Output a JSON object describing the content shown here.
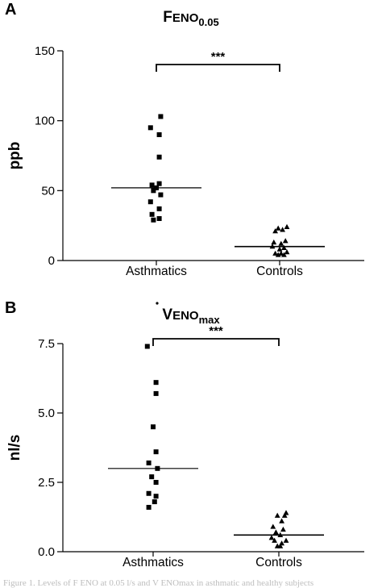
{
  "chart_data": [
    {
      "type": "scatter",
      "panel": "A",
      "title": "F",
      "title_main": "ENO",
      "title_sub": "0.05",
      "ylabel": "ppb",
      "ylim": [
        0,
        150
      ],
      "yticks": [
        "0",
        "50",
        "100",
        "150"
      ],
      "yticks_values": [
        0,
        50,
        100,
        150
      ],
      "categories": [
        "Asthmatics",
        "Controls"
      ],
      "series": [
        {
          "category": "Asthmatics",
          "marker": "square",
          "values": [
            103,
            95,
            90,
            74,
            55,
            54,
            52,
            50,
            47,
            42,
            37,
            33,
            30,
            29
          ],
          "x_offsets": [
            0.6,
            -0.8,
            0.4,
            0.4,
            0.4,
            -0.6,
            0,
            -0.4,
            0.6,
            -0.8,
            0.4,
            -0.6,
            0.4,
            -0.4
          ],
          "median": 52
        },
        {
          "category": "Controls",
          "marker": "triangle",
          "values": [
            24,
            23,
            22,
            21,
            14,
            13,
            12,
            10,
            9,
            8,
            6,
            5,
            5,
            4,
            4
          ],
          "x_offsets": [
            1.0,
            -0.2,
            0.4,
            -0.6,
            0.8,
            -0.8,
            0.2,
            -1.0,
            0.6,
            0.0,
            1.0,
            -0.6,
            0.2,
            -0.2,
            0.6
          ],
          "median": 10
        }
      ],
      "significance": "***"
    },
    {
      "type": "scatter",
      "panel": "B",
      "title": "V",
      "title_main": "ENO",
      "title_sub": "max",
      "ylabel": "nl/s",
      "ylim": [
        0,
        7.5
      ],
      "yticks": [
        "0.0",
        "2.5",
        "5.0",
        "7.5"
      ],
      "yticks_values": [
        0,
        2.5,
        5.0,
        7.5
      ],
      "categories": [
        "Asthmatics",
        "Controls"
      ],
      "series": [
        {
          "category": "Asthmatics",
          "marker": "square",
          "values": [
            7.4,
            6.1,
            5.7,
            4.5,
            3.6,
            3.2,
            3.0,
            2.7,
            2.5,
            2.1,
            2.0,
            1.8,
            1.6
          ],
          "x_offsets": [
            -0.8,
            0.4,
            0.4,
            0.0,
            0.4,
            -0.6,
            0.6,
            -0.2,
            0.4,
            -0.6,
            0.4,
            0.2,
            -0.6
          ],
          "median": 3.0
        },
        {
          "category": "Controls",
          "marker": "triangle",
          "values": [
            1.4,
            1.3,
            1.3,
            1.1,
            0.9,
            0.8,
            0.7,
            0.6,
            0.5,
            0.4,
            0.4,
            0.3,
            0.2,
            0.2
          ],
          "x_offsets": [
            1.0,
            -0.2,
            0.8,
            0.4,
            -0.8,
            0.6,
            -0.4,
            0.2,
            -1.0,
            1.0,
            -0.6,
            0.4,
            0.2,
            -0.2
          ],
          "median": 0.6
        }
      ],
      "significance": "***"
    }
  ],
  "caption": "Figure 1. Levels of F ENO at 0.05 l/s and V ENOmax in asthmatic and healthy subjects"
}
